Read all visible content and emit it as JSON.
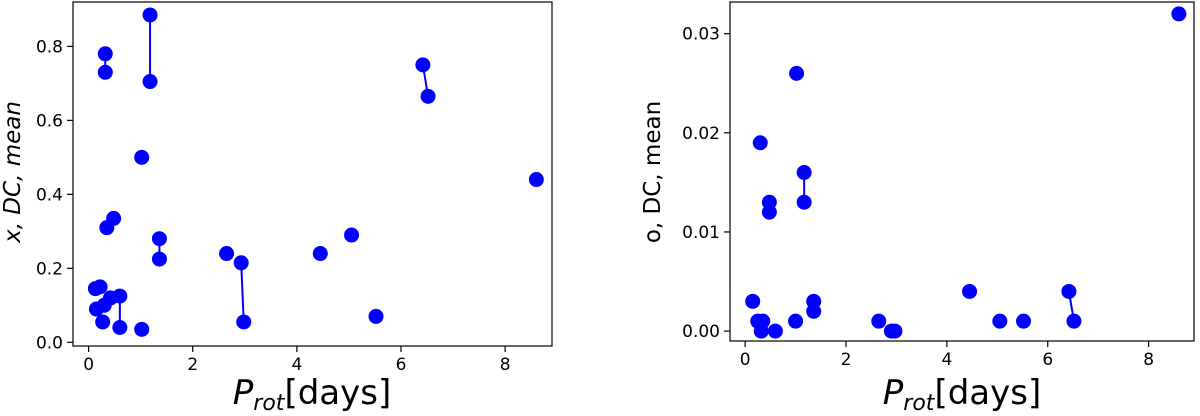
{
  "chart_data": [
    {
      "type": "scatter",
      "title": "",
      "xlabel_main": "P",
      "xlabel_sub": "rot",
      "xlabel_rest": "[days]",
      "ylabel": "x, DC, mean",
      "xlim": [
        -0.3,
        8.9
      ],
      "ylim": [
        -0.01,
        0.92
      ],
      "xticks": [
        0,
        2,
        4,
        6,
        8
      ],
      "yticks": [
        0.0,
        0.2,
        0.4,
        0.6,
        0.8
      ],
      "ytick_labels": [
        "0.0",
        "0.2",
        "0.4",
        "0.6",
        "0.8"
      ],
      "grid": false,
      "color": "#0000ff",
      "points": [
        {
          "x": 0.13,
          "y": 0.145
        },
        {
          "x": 0.15,
          "y": 0.09
        },
        {
          "x": 0.22,
          "y": 0.15
        },
        {
          "x": 0.27,
          "y": 0.055
        },
        {
          "x": 0.3,
          "y": 0.1
        },
        {
          "x": 0.32,
          "y": 0.78
        },
        {
          "x": 0.32,
          "y": 0.73
        },
        {
          "x": 0.35,
          "y": 0.31
        },
        {
          "x": 0.42,
          "y": 0.12
        },
        {
          "x": 0.48,
          "y": 0.335
        },
        {
          "x": 0.6,
          "y": 0.125
        },
        {
          "x": 0.6,
          "y": 0.04
        },
        {
          "x": 1.02,
          "y": 0.035
        },
        {
          "x": 1.02,
          "y": 0.5
        },
        {
          "x": 1.18,
          "y": 0.885
        },
        {
          "x": 1.18,
          "y": 0.705
        },
        {
          "x": 1.36,
          "y": 0.28
        },
        {
          "x": 1.36,
          "y": 0.225
        },
        {
          "x": 2.65,
          "y": 0.24
        },
        {
          "x": 2.93,
          "y": 0.215
        },
        {
          "x": 2.98,
          "y": 0.055
        },
        {
          "x": 4.45,
          "y": 0.24
        },
        {
          "x": 5.05,
          "y": 0.29
        },
        {
          "x": 5.52,
          "y": 0.07
        },
        {
          "x": 6.42,
          "y": 0.75
        },
        {
          "x": 6.52,
          "y": 0.665
        },
        {
          "x": 8.6,
          "y": 0.44
        }
      ],
      "links": [
        [
          [
            0.32,
            0.78
          ],
          [
            0.32,
            0.73
          ]
        ],
        [
          [
            0.6,
            0.125
          ],
          [
            0.6,
            0.04
          ]
        ],
        [
          [
            1.18,
            0.885
          ],
          [
            1.18,
            0.705
          ]
        ],
        [
          [
            1.36,
            0.28
          ],
          [
            1.36,
            0.225
          ]
        ],
        [
          [
            2.93,
            0.215
          ],
          [
            2.98,
            0.055
          ]
        ],
        [
          [
            6.42,
            0.75
          ],
          [
            6.52,
            0.665
          ]
        ]
      ]
    },
    {
      "type": "scatter",
      "title": "",
      "xlabel_main": "P",
      "xlabel_sub": "rot",
      "xlabel_rest": "[days]",
      "ylabel": "o, DC, mean",
      "xlim": [
        -0.3,
        8.9
      ],
      "ylim": [
        -0.001,
        0.0332
      ],
      "xticks": [
        0,
        2,
        4,
        6,
        8
      ],
      "yticks": [
        0.0,
        0.01,
        0.02,
        0.03
      ],
      "ytick_labels": [
        "0.00",
        "0.01",
        "0.02",
        "0.03"
      ],
      "grid": false,
      "color": "#0000ff",
      "points": [
        {
          "x": 0.15,
          "y": 0.003
        },
        {
          "x": 0.25,
          "y": 0.001
        },
        {
          "x": 0.3,
          "y": 0.019
        },
        {
          "x": 0.32,
          "y": 0.0
        },
        {
          "x": 0.35,
          "y": 0.001
        },
        {
          "x": 0.48,
          "y": 0.013
        },
        {
          "x": 0.48,
          "y": 0.012
        },
        {
          "x": 0.6,
          "y": 0.0
        },
        {
          "x": 1.0,
          "y": 0.001
        },
        {
          "x": 1.02,
          "y": 0.026
        },
        {
          "x": 1.17,
          "y": 0.016
        },
        {
          "x": 1.17,
          "y": 0.013
        },
        {
          "x": 1.36,
          "y": 0.003
        },
        {
          "x": 1.36,
          "y": 0.002
        },
        {
          "x": 2.65,
          "y": 0.001
        },
        {
          "x": 2.9,
          "y": 0.0
        },
        {
          "x": 2.97,
          "y": 0.0
        },
        {
          "x": 4.45,
          "y": 0.004
        },
        {
          "x": 5.05,
          "y": 0.001
        },
        {
          "x": 5.52,
          "y": 0.001
        },
        {
          "x": 6.42,
          "y": 0.004
        },
        {
          "x": 6.52,
          "y": 0.001
        },
        {
          "x": 8.6,
          "y": 0.032
        }
      ],
      "links": [
        [
          [
            0.48,
            0.013
          ],
          [
            0.48,
            0.012
          ]
        ],
        [
          [
            1.17,
            0.016
          ],
          [
            1.17,
            0.013
          ]
        ],
        [
          [
            1.36,
            0.003
          ],
          [
            1.36,
            0.002
          ]
        ],
        [
          [
            6.42,
            0.004
          ],
          [
            6.52,
            0.001
          ]
        ]
      ]
    }
  ]
}
